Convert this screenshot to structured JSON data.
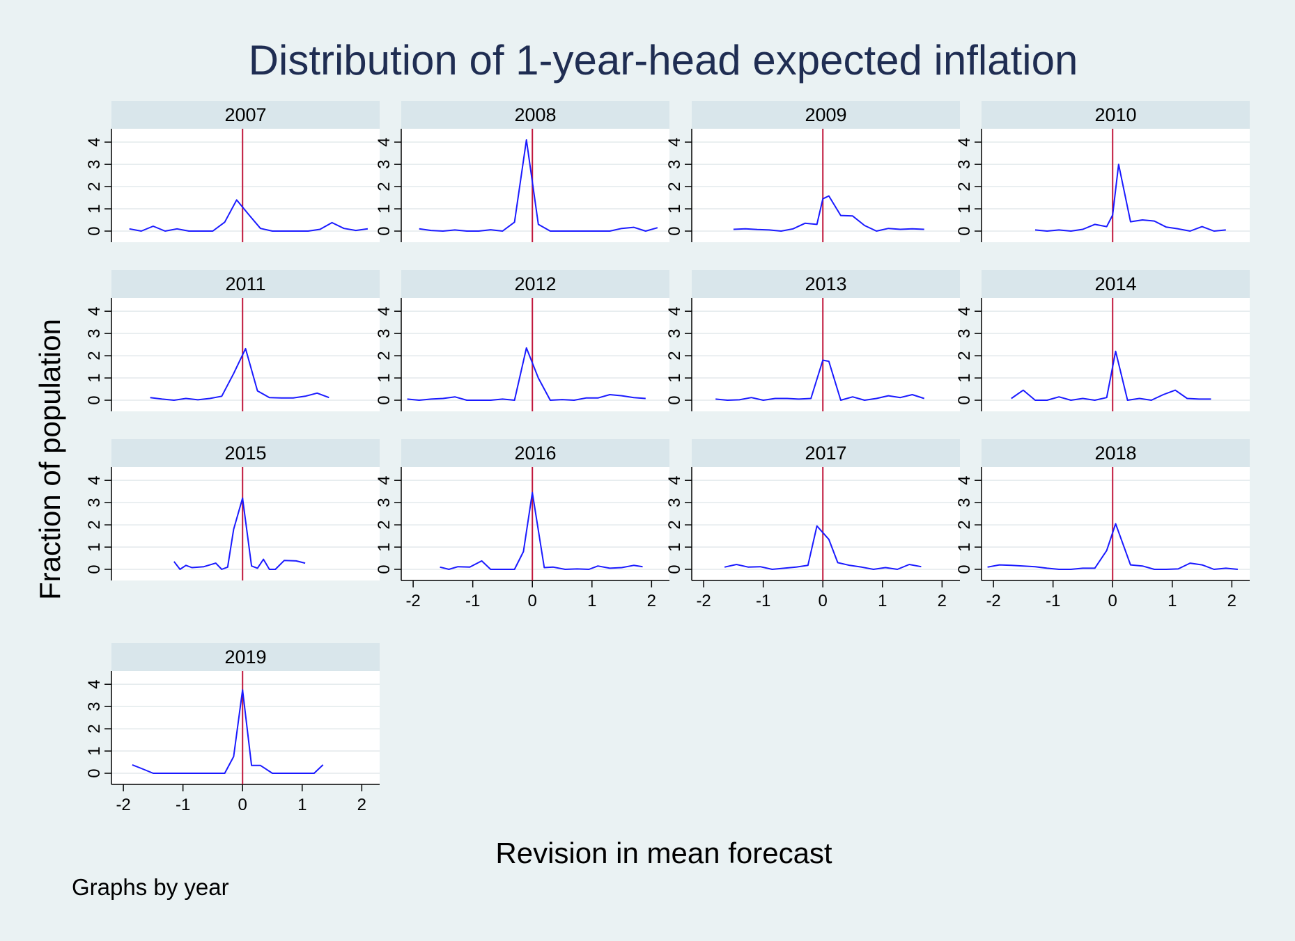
{
  "chart_data": {
    "type": "line",
    "title": "Distribution of 1-year-head expected inflation",
    "xlabel": "Revision in mean forecast",
    "ylabel": "Fraction of population",
    "note": "Graphs by year",
    "xlim": [
      -2.2,
      2.3
    ],
    "ylim": [
      -0.5,
      4.6
    ],
    "xticks": [
      "-2",
      "-1",
      "0",
      "1",
      "2"
    ],
    "yticks": [
      "0",
      "1",
      "2",
      "3",
      "4"
    ],
    "reference_line_x": 0,
    "grid": true,
    "colors": {
      "series": "#1a1aff",
      "reference": "#c0163b",
      "strip": "#d9e6eb",
      "background": "#eaf2f3",
      "plot": "#ffffff"
    },
    "panels": [
      {
        "label": "2007",
        "x": [
          -1.9,
          -1.7,
          -1.5,
          -1.3,
          -1.1,
          -0.9,
          -0.7,
          -0.5,
          -0.3,
          -0.1,
          0.1,
          0.3,
          0.5,
          0.7,
          0.9,
          1.1,
          1.3,
          1.5,
          1.7,
          1.9,
          2.1
        ],
        "y": [
          0.1,
          0.0,
          0.22,
          0.0,
          0.1,
          0.0,
          0.0,
          0.0,
          0.4,
          1.4,
          0.75,
          0.12,
          0.0,
          0.0,
          0.0,
          0.0,
          0.08,
          0.38,
          0.12,
          0.03,
          0.1
        ]
      },
      {
        "label": "2008",
        "x": [
          -1.9,
          -1.7,
          -1.5,
          -1.3,
          -1.1,
          -0.9,
          -0.7,
          -0.5,
          -0.3,
          -0.1,
          0.1,
          0.3,
          0.5,
          0.7,
          0.9,
          1.1,
          1.3,
          1.5,
          1.7,
          1.9,
          2.1
        ],
        "y": [
          0.1,
          0.03,
          0.0,
          0.05,
          0.0,
          0.0,
          0.06,
          0.0,
          0.4,
          4.1,
          0.3,
          0.0,
          0.0,
          0.0,
          0.0,
          0.0,
          0.0,
          0.12,
          0.17,
          0.0,
          0.15
        ]
      },
      {
        "label": "2009",
        "x": [
          -1.5,
          -1.3,
          -1.1,
          -0.9,
          -0.7,
          -0.5,
          -0.3,
          -0.1,
          0.0,
          0.1,
          0.3,
          0.5,
          0.7,
          0.9,
          1.1,
          1.3,
          1.5,
          1.7
        ],
        "y": [
          0.08,
          0.1,
          0.07,
          0.05,
          0.0,
          0.1,
          0.35,
          0.3,
          1.45,
          1.58,
          0.7,
          0.68,
          0.25,
          0.0,
          0.12,
          0.08,
          0.1,
          0.08
        ]
      },
      {
        "label": "2010",
        "x": [
          -1.3,
          -1.1,
          -0.9,
          -0.7,
          -0.5,
          -0.3,
          -0.1,
          0.0,
          0.1,
          0.3,
          0.5,
          0.7,
          0.9,
          1.1,
          1.3,
          1.5,
          1.7,
          1.9
        ],
        "y": [
          0.05,
          0.0,
          0.05,
          0.0,
          0.08,
          0.3,
          0.2,
          0.72,
          3.0,
          0.42,
          0.5,
          0.45,
          0.18,
          0.1,
          0.0,
          0.2,
          0.0,
          0.05
        ]
      },
      {
        "label": "2011",
        "x": [
          -1.55,
          -1.35,
          -1.15,
          -0.95,
          -0.75,
          -0.55,
          -0.35,
          -0.15,
          0.05,
          0.25,
          0.45,
          0.65,
          0.85,
          1.05,
          1.25,
          1.45
        ],
        "y": [
          0.12,
          0.05,
          0.0,
          0.08,
          0.02,
          0.08,
          0.18,
          1.2,
          2.32,
          0.42,
          0.12,
          0.1,
          0.1,
          0.18,
          0.32,
          0.12
        ]
      },
      {
        "label": "2012",
        "x": [
          -2.1,
          -1.9,
          -1.7,
          -1.5,
          -1.3,
          -1.1,
          -0.9,
          -0.7,
          -0.5,
          -0.3,
          -0.1,
          0.1,
          0.3,
          0.5,
          0.7,
          0.9,
          1.1,
          1.3,
          1.5,
          1.7,
          1.9
        ],
        "y": [
          0.05,
          0.0,
          0.05,
          0.08,
          0.15,
          0.0,
          0.0,
          0.0,
          0.05,
          0.0,
          2.35,
          1.0,
          0.0,
          0.03,
          0.0,
          0.1,
          0.1,
          0.25,
          0.2,
          0.12,
          0.08
        ]
      },
      {
        "label": "2013",
        "x": [
          -1.8,
          -1.6,
          -1.4,
          -1.2,
          -1.0,
          -0.8,
          -0.6,
          -0.4,
          -0.2,
          0.0,
          0.1,
          0.3,
          0.5,
          0.7,
          0.9,
          1.1,
          1.3,
          1.5,
          1.7
        ],
        "y": [
          0.05,
          0.0,
          0.02,
          0.12,
          0.0,
          0.08,
          0.08,
          0.05,
          0.08,
          1.8,
          1.75,
          0.0,
          0.15,
          0.0,
          0.08,
          0.2,
          0.12,
          0.25,
          0.08
        ]
      },
      {
        "label": "2014",
        "x": [
          -1.7,
          -1.5,
          -1.3,
          -1.1,
          -0.9,
          -0.7,
          -0.5,
          -0.3,
          -0.1,
          0.05,
          0.25,
          0.45,
          0.65,
          0.85,
          1.05,
          1.25,
          1.45,
          1.65
        ],
        "y": [
          0.08,
          0.45,
          0.0,
          0.0,
          0.15,
          0.0,
          0.08,
          0.0,
          0.12,
          2.2,
          0.0,
          0.08,
          0.0,
          0.25,
          0.45,
          0.08,
          0.05,
          0.05
        ]
      },
      {
        "label": "2015",
        "x": [
          -1.15,
          -1.05,
          -0.95,
          -0.85,
          -0.65,
          -0.45,
          -0.35,
          -0.25,
          -0.15,
          0.0,
          0.15,
          0.25,
          0.35,
          0.45,
          0.55,
          0.7,
          0.9,
          1.05
        ],
        "y": [
          0.35,
          0.0,
          0.18,
          0.08,
          0.12,
          0.28,
          0.0,
          0.1,
          1.8,
          3.2,
          0.15,
          0.05,
          0.45,
          0.0,
          0.0,
          0.4,
          0.38,
          0.28
        ]
      },
      {
        "label": "2016",
        "x": [
          -1.55,
          -1.4,
          -1.25,
          -1.05,
          -0.85,
          -0.7,
          -0.5,
          -0.3,
          -0.15,
          0.0,
          0.2,
          0.35,
          0.55,
          0.75,
          0.95,
          1.1,
          1.3,
          1.5,
          1.7,
          1.85
        ],
        "y": [
          0.1,
          0.0,
          0.12,
          0.1,
          0.38,
          0.0,
          0.0,
          0.0,
          0.8,
          3.45,
          0.08,
          0.1,
          0.0,
          0.02,
          0.0,
          0.15,
          0.05,
          0.08,
          0.18,
          0.12
        ]
      },
      {
        "label": "2017",
        "x": [
          -1.65,
          -1.45,
          -1.25,
          -1.05,
          -0.85,
          -0.65,
          -0.45,
          -0.25,
          -0.1,
          0.1,
          0.25,
          0.45,
          0.65,
          0.85,
          1.05,
          1.25,
          1.45,
          1.65
        ],
        "y": [
          0.1,
          0.22,
          0.1,
          0.12,
          0.0,
          0.05,
          0.1,
          0.18,
          1.95,
          1.35,
          0.3,
          0.18,
          0.1,
          0.0,
          0.08,
          0.0,
          0.22,
          0.12
        ]
      },
      {
        "label": "2018",
        "x": [
          -2.1,
          -1.9,
          -1.7,
          -1.5,
          -1.3,
          -1.1,
          -0.9,
          -0.7,
          -0.5,
          -0.3,
          -0.1,
          0.05,
          0.3,
          0.5,
          0.7,
          0.9,
          1.1,
          1.3,
          1.5,
          1.7,
          1.9,
          2.1
        ],
        "y": [
          0.1,
          0.2,
          0.18,
          0.15,
          0.12,
          0.05,
          0.0,
          0.0,
          0.05,
          0.05,
          0.85,
          2.05,
          0.2,
          0.15,
          0.0,
          0.0,
          0.02,
          0.28,
          0.2,
          0.0,
          0.05,
          0.0
        ]
      },
      {
        "label": "2019",
        "x": [
          -1.85,
          -1.7,
          -1.5,
          -1.3,
          -1.1,
          -0.9,
          -0.7,
          -0.5,
          -0.3,
          -0.15,
          0.0,
          0.15,
          0.3,
          0.5,
          0.7,
          0.9,
          1.1,
          1.2,
          1.35
        ],
        "y": [
          0.38,
          0.22,
          0.0,
          0.0,
          0.0,
          0.0,
          0.0,
          0.0,
          0.0,
          0.75,
          3.75,
          0.35,
          0.35,
          0.0,
          0.0,
          0.0,
          0.0,
          0.0,
          0.38
        ]
      }
    ]
  }
}
